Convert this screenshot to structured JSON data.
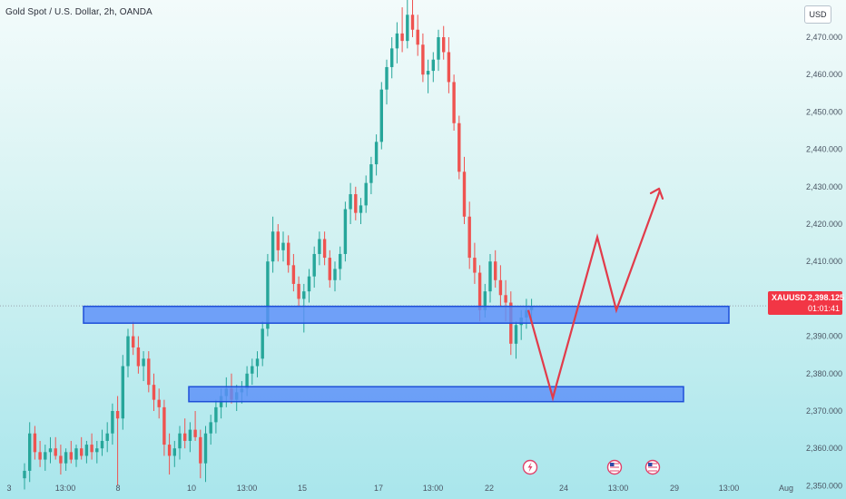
{
  "header": {
    "symbol_title": "Gold Spot / U.S. Dollar, 2h, OANDA",
    "currency_button": "USD"
  },
  "price_label": {
    "symbol": "XAUUSD",
    "price": "2,398.125",
    "countdown": "01:01:41"
  },
  "colors": {
    "bull": "#26a69a",
    "bear": "#ef5350",
    "zone_fill": "#5b8ff9",
    "zone_border": "#1e4fd8",
    "projection": "#e23b4a",
    "price_tag": "#f23645",
    "current_price_line": "#9aa3ad"
  },
  "icons": [
    "lightning-event-icon",
    "us-flag-event-icon",
    "us-flag-event-icon"
  ],
  "chart_data": {
    "type": "candlestick",
    "title": "Gold Spot / U.S. Dollar, 2h, OANDA",
    "xlabel": "",
    "ylabel": "",
    "ylim": [
      2348,
      2482
    ],
    "y_ticks": [
      2350,
      2360,
      2370,
      2380,
      2390,
      2400,
      2410,
      2420,
      2430,
      2440,
      2450,
      2460,
      2470
    ],
    "x_tick_labels": [
      "3",
      "13:00",
      "8",
      "10",
      "13:00",
      "15",
      "17",
      "13:00",
      "22",
      "24",
      "13:00",
      "29",
      "13:00",
      "Aug"
    ],
    "current_price": 2398.125,
    "zones": [
      {
        "low": 2393.5,
        "high": 2398.0
      },
      {
        "low": 2372.5,
        "high": 2376.5
      }
    ],
    "projection": [
      {
        "time": "now",
        "price": 2397
      },
      {
        "time": "24",
        "price": 2373.5
      },
      {
        "time": "24-25",
        "price": 2416.5
      },
      {
        "time": "13:00",
        "price": 2397
      },
      {
        "time": "13:00-29",
        "price": 2429
      }
    ],
    "candles": [
      {
        "o": 2352,
        "h": 2356,
        "l": 2349,
        "c": 2354
      },
      {
        "o": 2354,
        "h": 2367,
        "l": 2351,
        "c": 2364
      },
      {
        "o": 2364,
        "h": 2366,
        "l": 2357,
        "c": 2359
      },
      {
        "o": 2359,
        "h": 2362,
        "l": 2355,
        "c": 2357
      },
      {
        "o": 2357,
        "h": 2361,
        "l": 2354,
        "c": 2359
      },
      {
        "o": 2359,
        "h": 2363,
        "l": 2356,
        "c": 2360
      },
      {
        "o": 2360,
        "h": 2363,
        "l": 2357,
        "c": 2358
      },
      {
        "o": 2358,
        "h": 2361,
        "l": 2353,
        "c": 2356
      },
      {
        "o": 2356,
        "h": 2360,
        "l": 2354,
        "c": 2359
      },
      {
        "o": 2359,
        "h": 2362,
        "l": 2356,
        "c": 2357
      },
      {
        "o": 2357,
        "h": 2361,
        "l": 2355,
        "c": 2360
      },
      {
        "o": 2360,
        "h": 2363,
        "l": 2357,
        "c": 2358
      },
      {
        "o": 2358,
        "h": 2362,
        "l": 2356,
        "c": 2361
      },
      {
        "o": 2361,
        "h": 2364,
        "l": 2357,
        "c": 2359
      },
      {
        "o": 2359,
        "h": 2362,
        "l": 2356,
        "c": 2360
      },
      {
        "o": 2360,
        "h": 2365,
        "l": 2358,
        "c": 2362
      },
      {
        "o": 2362,
        "h": 2367,
        "l": 2359,
        "c": 2364
      },
      {
        "o": 2364,
        "h": 2372,
        "l": 2361,
        "c": 2370
      },
      {
        "o": 2370,
        "h": 2374,
        "l": 2350,
        "c": 2368
      },
      {
        "o": 2368,
        "h": 2385,
        "l": 2365,
        "c": 2382
      },
      {
        "o": 2382,
        "h": 2392,
        "l": 2379,
        "c": 2390
      },
      {
        "o": 2390,
        "h": 2394,
        "l": 2385,
        "c": 2387
      },
      {
        "o": 2387,
        "h": 2390,
        "l": 2380,
        "c": 2382
      },
      {
        "o": 2382,
        "h": 2386,
        "l": 2378,
        "c": 2384
      },
      {
        "o": 2384,
        "h": 2386,
        "l": 2375,
        "c": 2377
      },
      {
        "o": 2377,
        "h": 2380,
        "l": 2370,
        "c": 2373
      },
      {
        "o": 2373,
        "h": 2376,
        "l": 2368,
        "c": 2371
      },
      {
        "o": 2371,
        "h": 2373,
        "l": 2358,
        "c": 2361
      },
      {
        "o": 2361,
        "h": 2364,
        "l": 2353,
        "c": 2358
      },
      {
        "o": 2358,
        "h": 2362,
        "l": 2355,
        "c": 2360
      },
      {
        "o": 2360,
        "h": 2366,
        "l": 2357,
        "c": 2364
      },
      {
        "o": 2364,
        "h": 2368,
        "l": 2360,
        "c": 2362
      },
      {
        "o": 2362,
        "h": 2367,
        "l": 2359,
        "c": 2365
      },
      {
        "o": 2365,
        "h": 2370,
        "l": 2362,
        "c": 2363
      },
      {
        "o": 2363,
        "h": 2365,
        "l": 2352,
        "c": 2356
      },
      {
        "o": 2356,
        "h": 2366,
        "l": 2351,
        "c": 2364
      },
      {
        "o": 2364,
        "h": 2369,
        "l": 2361,
        "c": 2367
      },
      {
        "o": 2367,
        "h": 2373,
        "l": 2364,
        "c": 2371
      },
      {
        "o": 2371,
        "h": 2376,
        "l": 2368,
        "c": 2374
      },
      {
        "o": 2374,
        "h": 2379,
        "l": 2371,
        "c": 2376
      },
      {
        "o": 2376,
        "h": 2380,
        "l": 2372,
        "c": 2373
      },
      {
        "o": 2373,
        "h": 2377,
        "l": 2370,
        "c": 2375
      },
      {
        "o": 2375,
        "h": 2378,
        "l": 2372,
        "c": 2376
      },
      {
        "o": 2376,
        "h": 2382,
        "l": 2374,
        "c": 2380
      },
      {
        "o": 2380,
        "h": 2384,
        "l": 2377,
        "c": 2382
      },
      {
        "o": 2382,
        "h": 2386,
        "l": 2379,
        "c": 2384
      },
      {
        "o": 2384,
        "h": 2394,
        "l": 2382,
        "c": 2392
      },
      {
        "o": 2392,
        "h": 2412,
        "l": 2390,
        "c": 2410
      },
      {
        "o": 2410,
        "h": 2422,
        "l": 2407,
        "c": 2418
      },
      {
        "o": 2418,
        "h": 2420,
        "l": 2410,
        "c": 2413
      },
      {
        "o": 2413,
        "h": 2418,
        "l": 2410,
        "c": 2415
      },
      {
        "o": 2415,
        "h": 2417,
        "l": 2407,
        "c": 2409
      },
      {
        "o": 2409,
        "h": 2412,
        "l": 2402,
        "c": 2404
      },
      {
        "o": 2404,
        "h": 2406,
        "l": 2398,
        "c": 2400
      },
      {
        "o": 2400,
        "h": 2404,
        "l": 2391,
        "c": 2402
      },
      {
        "o": 2402,
        "h": 2408,
        "l": 2399,
        "c": 2406
      },
      {
        "o": 2406,
        "h": 2414,
        "l": 2403,
        "c": 2412
      },
      {
        "o": 2412,
        "h": 2418,
        "l": 2409,
        "c": 2416
      },
      {
        "o": 2416,
        "h": 2418,
        "l": 2409,
        "c": 2411
      },
      {
        "o": 2411,
        "h": 2413,
        "l": 2403,
        "c": 2405
      },
      {
        "o": 2405,
        "h": 2410,
        "l": 2402,
        "c": 2408
      },
      {
        "o": 2408,
        "h": 2414,
        "l": 2405,
        "c": 2412
      },
      {
        "o": 2412,
        "h": 2426,
        "l": 2410,
        "c": 2424
      },
      {
        "o": 2424,
        "h": 2431,
        "l": 2420,
        "c": 2428
      },
      {
        "o": 2428,
        "h": 2430,
        "l": 2421,
        "c": 2423
      },
      {
        "o": 2423,
        "h": 2427,
        "l": 2420,
        "c": 2425
      },
      {
        "o": 2425,
        "h": 2433,
        "l": 2423,
        "c": 2431
      },
      {
        "o": 2431,
        "h": 2438,
        "l": 2428,
        "c": 2436
      },
      {
        "o": 2436,
        "h": 2444,
        "l": 2433,
        "c": 2442
      },
      {
        "o": 2442,
        "h": 2458,
        "l": 2440,
        "c": 2456
      },
      {
        "o": 2456,
        "h": 2464,
        "l": 2452,
        "c": 2462
      },
      {
        "o": 2462,
        "h": 2470,
        "l": 2459,
        "c": 2467
      },
      {
        "o": 2467,
        "h": 2474,
        "l": 2463,
        "c": 2471
      },
      {
        "o": 2471,
        "h": 2478,
        "l": 2466,
        "c": 2469
      },
      {
        "o": 2469,
        "h": 2483,
        "l": 2467,
        "c": 2476
      },
      {
        "o": 2476,
        "h": 2481,
        "l": 2470,
        "c": 2472
      },
      {
        "o": 2472,
        "h": 2476,
        "l": 2465,
        "c": 2468
      },
      {
        "o": 2468,
        "h": 2471,
        "l": 2458,
        "c": 2460
      },
      {
        "o": 2460,
        "h": 2464,
        "l": 2455,
        "c": 2461
      },
      {
        "o": 2461,
        "h": 2466,
        "l": 2458,
        "c": 2464
      },
      {
        "o": 2464,
        "h": 2472,
        "l": 2461,
        "c": 2470
      },
      {
        "o": 2470,
        "h": 2473,
        "l": 2464,
        "c": 2466
      },
      {
        "o": 2466,
        "h": 2470,
        "l": 2455,
        "c": 2458
      },
      {
        "o": 2458,
        "h": 2460,
        "l": 2445,
        "c": 2447
      },
      {
        "o": 2447,
        "h": 2449,
        "l": 2432,
        "c": 2434
      },
      {
        "o": 2434,
        "h": 2438,
        "l": 2420,
        "c": 2422
      },
      {
        "o": 2422,
        "h": 2426,
        "l": 2408,
        "c": 2411
      },
      {
        "o": 2411,
        "h": 2415,
        "l": 2404,
        "c": 2407
      },
      {
        "o": 2407,
        "h": 2409,
        "l": 2394,
        "c": 2397
      },
      {
        "o": 2397,
        "h": 2404,
        "l": 2395,
        "c": 2402
      },
      {
        "o": 2402,
        "h": 2412,
        "l": 2399,
        "c": 2410
      },
      {
        "o": 2410,
        "h": 2413,
        "l": 2403,
        "c": 2405
      },
      {
        "o": 2405,
        "h": 2409,
        "l": 2398,
        "c": 2401
      },
      {
        "o": 2401,
        "h": 2405,
        "l": 2394,
        "c": 2399
      },
      {
        "o": 2399,
        "h": 2402,
        "l": 2385,
        "c": 2388
      },
      {
        "o": 2388,
        "h": 2394,
        "l": 2384,
        "c": 2393
      },
      {
        "o": 2393,
        "h": 2397,
        "l": 2389,
        "c": 2395
      },
      {
        "o": 2395,
        "h": 2400,
        "l": 2392,
        "c": 2397
      },
      {
        "o": 2397,
        "h": 2400,
        "l": 2394,
        "c": 2398
      }
    ]
  }
}
